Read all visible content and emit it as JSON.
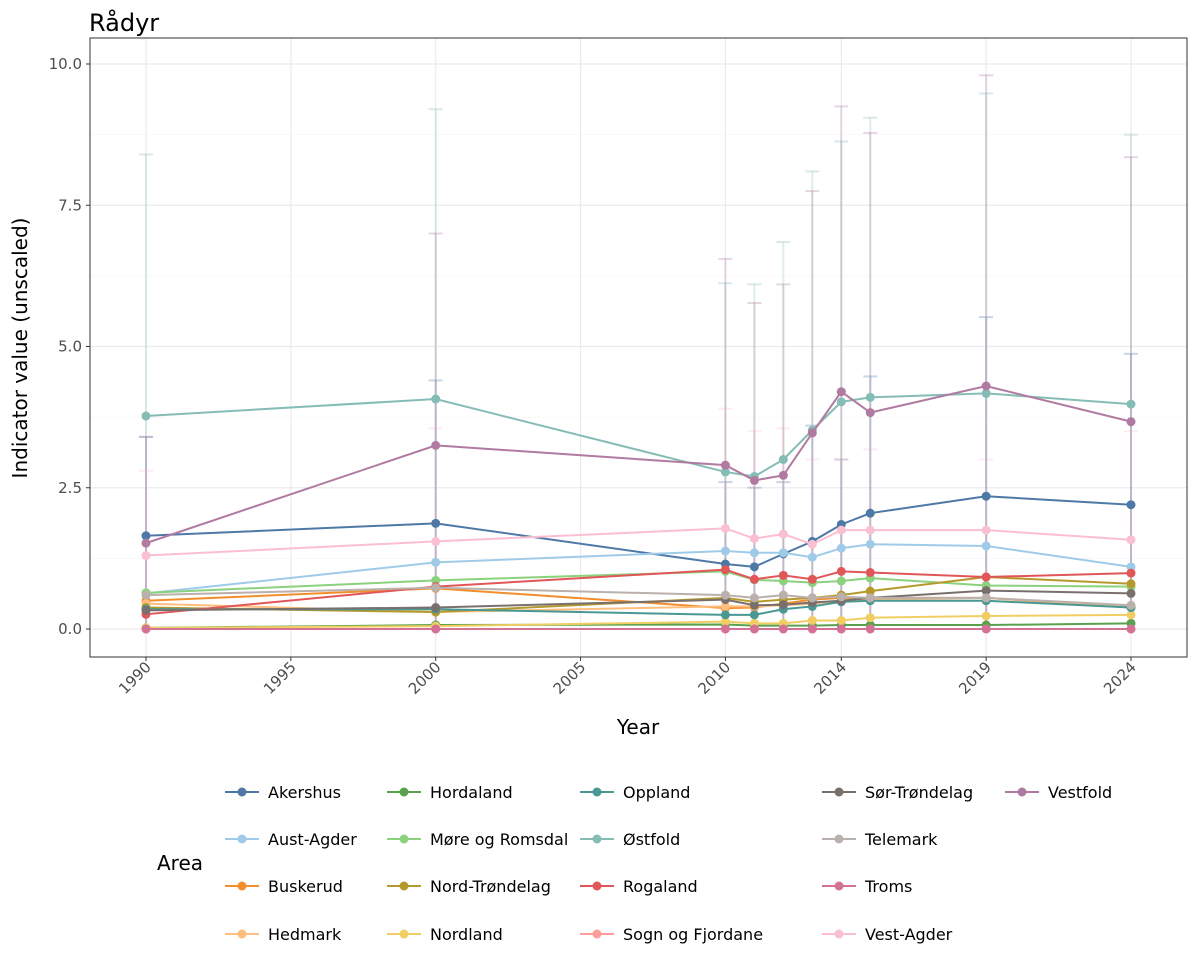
{
  "chart_data": {
    "type": "line",
    "title": "Rådyr",
    "xlabel": "Year",
    "ylabel": "Indicator value (unscaled)",
    "legend_title": "Area",
    "legend_position": "bottom",
    "xlim": [
      1988,
      2026
    ],
    "ylim": [
      -0.5,
      10.4
    ],
    "x_ticks": [
      1990,
      1995,
      2000,
      2005,
      2010,
      2014,
      2019,
      2024
    ],
    "y_ticks": [
      0,
      2.5,
      5,
      7.5,
      10
    ],
    "y_tick_labels": [
      "0.0",
      "2.5",
      "5.0",
      "7.5",
      "10.0"
    ],
    "x": [
      1990,
      2000,
      2010,
      2011,
      2012,
      2013,
      2014,
      2015,
      2019,
      2024
    ],
    "series": [
      {
        "name": "Akershus",
        "color": "#4E79A7",
        "values": [
          1.65,
          1.87,
          1.15,
          1.1,
          1.33,
          1.55,
          1.85,
          2.05,
          2.35,
          2.2
        ],
        "upper": [
          3.4,
          4.4,
          2.6,
          2.5,
          2.6,
          3.6,
          3.0,
          4.47,
          5.52,
          4.87
        ]
      },
      {
        "name": "Aust-Agder",
        "color": "#A0CBE8",
        "values": [
          0.63,
          1.18,
          1.38,
          1.35,
          1.35,
          1.27,
          1.43,
          1.5,
          1.47,
          1.1
        ]
      },
      {
        "name": "Buskerud",
        "color": "#F28E2B",
        "values": [
          0.5,
          0.72,
          0.37,
          0.38,
          0.45,
          0.52,
          0.55,
          0.55,
          0.55,
          0.38
        ]
      },
      {
        "name": "Hedmark",
        "color": "#FFBE7D",
        "values": [
          0.45,
          0.3,
          0.4,
          0.4,
          0.42,
          0.45,
          0.5,
          0.52,
          0.55,
          0.4
        ]
      },
      {
        "name": "Hordaland",
        "color": "#59A14F",
        "values": [
          0.02,
          0.07,
          0.08,
          0.06,
          0.06,
          0.06,
          0.07,
          0.07,
          0.07,
          0.1
        ]
      },
      {
        "name": "Møre og Romsdal",
        "color": "#8CD17D",
        "values": [
          0.64,
          0.86,
          1.02,
          0.87,
          0.85,
          0.82,
          0.85,
          0.9,
          0.77,
          0.75
        ]
      },
      {
        "name": "Nord-Trøndelag",
        "color": "#B6992D",
        "values": [
          0.38,
          0.3,
          0.55,
          0.48,
          0.52,
          0.55,
          0.6,
          0.67,
          0.92,
          0.8
        ]
      },
      {
        "name": "Nordland",
        "color": "#F1CE63",
        "values": [
          0.02,
          0.05,
          0.13,
          0.1,
          0.1,
          0.15,
          0.15,
          0.2,
          0.23,
          0.25
        ]
      },
      {
        "name": "Oppland",
        "color": "#499894",
        "values": [
          0.35,
          0.35,
          0.25,
          0.25,
          0.35,
          0.4,
          0.48,
          0.5,
          0.5,
          0.38
        ]
      },
      {
        "name": "Østfold",
        "color": "#86BCB6",
        "values": [
          3.77,
          4.07,
          2.78,
          2.7,
          3.0,
          3.52,
          4.02,
          4.1,
          4.17,
          3.98
        ],
        "upper": [
          8.4,
          9.2,
          6.12,
          6.1,
          6.85,
          8.1,
          8.63,
          9.05,
          9.48,
          8.75
        ]
      },
      {
        "name": "Rogaland",
        "color": "#E15759",
        "values": [
          0.26,
          0.75,
          1.05,
          0.88,
          0.95,
          0.88,
          1.02,
          1.0,
          0.92,
          0.99
        ]
      },
      {
        "name": "Sogn og Fjordane",
        "color": "#FF9D9A",
        "values": [
          0,
          0,
          0,
          0,
          0,
          0,
          0,
          0,
          0,
          0
        ]
      },
      {
        "name": "Sør-Trøndelag",
        "color": "#79706E",
        "values": [
          0.33,
          0.38,
          0.52,
          0.42,
          0.43,
          0.47,
          0.5,
          0.55,
          0.68,
          0.63
        ]
      },
      {
        "name": "Telemark",
        "color": "#BAB0AC",
        "values": [
          0.6,
          0.73,
          0.6,
          0.55,
          0.6,
          0.55,
          0.57,
          0.55,
          0.55,
          0.42
        ]
      },
      {
        "name": "Troms",
        "color": "#D37295",
        "values": [
          0,
          0,
          0,
          0,
          0,
          0,
          0,
          0,
          0,
          0
        ]
      },
      {
        "name": "Vest-Agder",
        "color": "#FABFD2",
        "values": [
          1.3,
          1.55,
          1.78,
          1.6,
          1.68,
          1.5,
          1.75,
          1.75,
          1.75,
          1.58
        ],
        "upper": [
          2.8,
          3.55,
          3.9,
          3.5,
          3.55,
          3.0,
          3.0,
          3.18,
          3.0,
          3.5
        ]
      },
      {
        "name": "Vestfold",
        "color": "#B07AA1",
        "values": [
          1.52,
          3.25,
          2.9,
          2.63,
          2.72,
          3.47,
          4.2,
          3.83,
          4.3,
          3.67
        ],
        "upper": [
          3.4,
          7.0,
          6.55,
          5.77,
          6.1,
          7.75,
          9.25,
          8.78,
          9.8,
          8.35
        ]
      }
    ]
  }
}
